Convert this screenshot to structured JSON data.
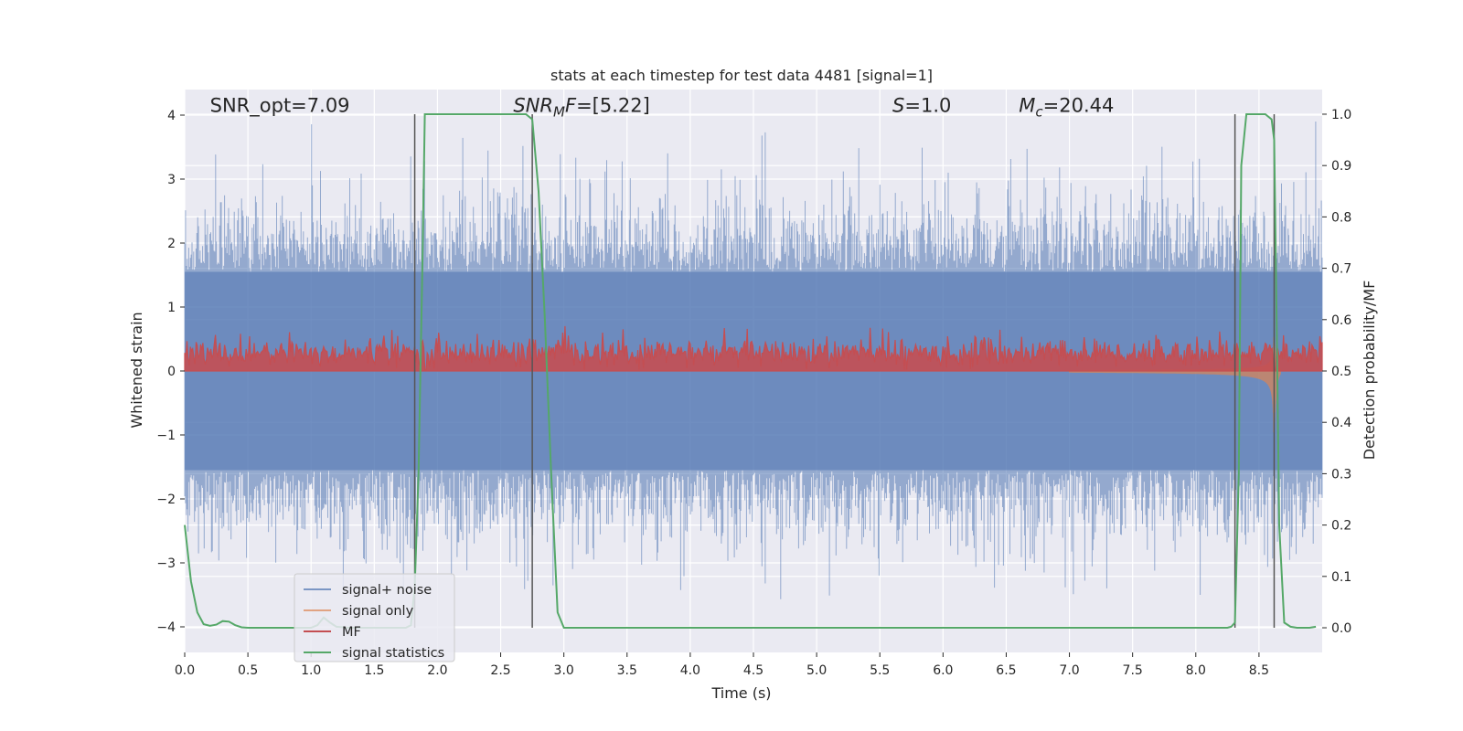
{
  "chart_data": {
    "type": "line",
    "title": "stats at each timestep for test data 4481 [signal=1]",
    "xlabel": "Time (s)",
    "ylabel": "Whitened strain",
    "ylabel_right": "Detection probability/MF",
    "xlim": [
      0,
      9
    ],
    "ylim": [
      -4.4,
      4.4
    ],
    "ylim_right": [
      -0.048,
      1.048
    ],
    "x_ticks": [
      0.0,
      0.5,
      1.0,
      1.5,
      2.0,
      2.5,
      3.0,
      3.5,
      4.0,
      4.5,
      5.0,
      5.5,
      6.0,
      6.5,
      7.0,
      7.5,
      8.0,
      8.5
    ],
    "x_tick_labels": [
      "0.0",
      "0.5",
      "1.0",
      "1.5",
      "2.0",
      "2.5",
      "3.0",
      "3.5",
      "4.0",
      "4.5",
      "5.0",
      "5.5",
      "6.0",
      "6.5",
      "7.0",
      "7.5",
      "8.0",
      "8.5"
    ],
    "y_ticks": [
      4,
      3,
      2,
      1,
      0,
      -1,
      -2,
      -3,
      -4
    ],
    "y_tick_labels": [
      "4",
      "3",
      "2",
      "1",
      "0",
      "−1",
      "−2",
      "−3",
      "−4"
    ],
    "y_right_ticks": [
      1.0,
      0.9,
      0.8,
      0.7,
      0.6,
      0.5,
      0.4,
      0.3,
      0.2,
      0.1,
      0.0
    ],
    "y_right_tick_labels": [
      "1.0",
      "0.9",
      "0.8",
      "0.7",
      "0.6",
      "0.5",
      "0.4",
      "0.3",
      "0.2",
      "0.1",
      "0.0"
    ],
    "grid": true,
    "legend_position": "lower-left",
    "annotations": [
      {
        "text": "SNR_opt=7.09",
        "x": 0.2
      },
      {
        "text": "SNR_MF=[5.22]",
        "x": 2.6
      },
      {
        "text": "S=1.0",
        "x": 5.6
      },
      {
        "text": "M_c=20.44",
        "x": 6.6
      }
    ],
    "annotation_y": 4.05,
    "vertical_markers": [
      1.82,
      2.75,
      8.31,
      8.62
    ],
    "series": [
      {
        "name": "signal+ noise",
        "axis": "left",
        "color": "#4c72b0",
        "style": "dense noise, band roughly -2 to 2, peaks to about ±3.9"
      },
      {
        "name": "signal only",
        "axis": "left",
        "color": "#dd8452",
        "style": "chirp with amplitude rising toward merger near 8.6 s, peak about ±1"
      },
      {
        "name": "MF",
        "axis": "left",
        "color": "#c44e52",
        "style": "positive noise, about 0 to 0.7"
      },
      {
        "name": "signal statistics",
        "axis": "right",
        "color": "#55a868",
        "x": [
          0.0,
          0.05,
          0.1,
          0.15,
          0.2,
          0.25,
          0.3,
          0.35,
          0.4,
          0.45,
          0.5,
          0.6,
          0.7,
          0.8,
          0.9,
          1.0,
          1.05,
          1.1,
          1.15,
          1.2,
          1.3,
          1.4,
          1.5,
          1.6,
          1.7,
          1.75,
          1.79,
          1.82,
          1.85,
          1.88,
          1.9,
          2.0,
          2.2,
          2.4,
          2.6,
          2.7,
          2.75,
          2.8,
          2.85,
          2.9,
          2.95,
          3.0,
          3.5,
          4.0,
          4.5,
          5.0,
          5.5,
          6.0,
          6.5,
          7.0,
          7.5,
          8.0,
          8.25,
          8.28,
          8.31,
          8.34,
          8.36,
          8.4,
          8.5,
          8.55,
          8.6,
          8.62,
          8.64,
          8.66,
          8.7,
          8.75,
          8.8,
          8.9,
          8.95
        ],
        "values": [
          0.2,
          0.09,
          0.03,
          0.007,
          0.004,
          0.006,
          0.013,
          0.012,
          0.005,
          0.001,
          0.0,
          0.0,
          0.0,
          0.0,
          0.0,
          0.0,
          0.005,
          0.02,
          0.01,
          0.002,
          0.0,
          0.0,
          0.0,
          0.0,
          0.0,
          0.0,
          0.005,
          0.08,
          0.3,
          0.7,
          1.0,
          1.0,
          1.0,
          1.0,
          1.0,
          1.0,
          0.99,
          0.85,
          0.6,
          0.3,
          0.03,
          0.0,
          0.0,
          0.0,
          0.0,
          0.0,
          0.0,
          0.0,
          0.0,
          0.0,
          0.0,
          0.0,
          0.0,
          0.002,
          0.01,
          0.3,
          0.9,
          1.0,
          1.0,
          1.0,
          0.99,
          0.95,
          0.6,
          0.2,
          0.01,
          0.002,
          0.0,
          0.0,
          0.002
        ]
      }
    ]
  }
}
